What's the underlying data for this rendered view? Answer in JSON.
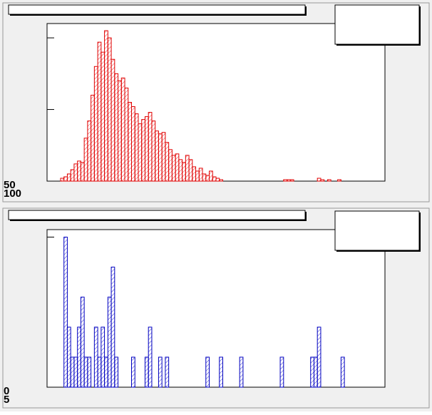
{
  "chart_data": [
    {
      "type": "histogram",
      "color": "#e00000",
      "bins": [
        0,
        1,
        2,
        3,
        4,
        5,
        6,
        7,
        8,
        9,
        10,
        11,
        12,
        13,
        14,
        15,
        16,
        17,
        18,
        19,
        20,
        21,
        22,
        23,
        24,
        25,
        26,
        27,
        28,
        29,
        30,
        31,
        32,
        33,
        34,
        35,
        36,
        37,
        38,
        39,
        40,
        41,
        42,
        43,
        44,
        45,
        46,
        47,
        48,
        49,
        50,
        51,
        52,
        53,
        54,
        55,
        56,
        57,
        58,
        59,
        60,
        61,
        62,
        63,
        64,
        65,
        66,
        67,
        68,
        69,
        70,
        71,
        72,
        73,
        74,
        75,
        76,
        77,
        78,
        79,
        80,
        81,
        82,
        83,
        84,
        85,
        86,
        87,
        88,
        89,
        90,
        91,
        92,
        93,
        94,
        95,
        96,
        97,
        98,
        99,
        100
      ],
      "values": [
        0,
        0,
        0,
        0,
        2,
        3,
        5,
        8,
        12,
        14,
        13,
        30,
        42,
        60,
        80,
        97,
        90,
        105,
        100,
        85,
        75,
        70,
        72,
        65,
        55,
        52,
        47,
        40,
        43,
        45,
        48,
        42,
        35,
        33,
        34,
        27,
        22,
        18,
        19,
        15,
        13,
        18,
        15,
        10,
        7,
        9,
        5,
        4,
        7,
        3,
        2,
        1,
        0,
        0,
        0,
        0,
        0,
        0,
        0,
        0,
        0,
        0,
        0,
        0,
        0,
        0,
        0,
        0,
        0,
        0,
        1,
        1,
        1,
        0,
        0,
        0,
        0,
        0,
        0,
        0,
        2,
        1,
        0,
        1,
        0,
        0,
        1,
        0,
        0,
        0,
        0,
        0,
        0,
        0,
        0,
        0,
        0,
        0,
        0,
        0
      ],
      "xlim": [
        0,
        100
      ],
      "ylim": [
        0,
        110
      ],
      "yticks": [
        50,
        100
      ]
    },
    {
      "type": "histogram",
      "color": "#0000c0",
      "bins": [
        0,
        1,
        2,
        3,
        4,
        5,
        6,
        7,
        8,
        9,
        10,
        11,
        12,
        13,
        14,
        15,
        16,
        17,
        18,
        19,
        20,
        21,
        22,
        23,
        24,
        25,
        26,
        27,
        28,
        29,
        30,
        31,
        32,
        33,
        34,
        35,
        36,
        37,
        38,
        39,
        40,
        41,
        42,
        43,
        44,
        45,
        46,
        47,
        48,
        49,
        50,
        51,
        52,
        53,
        54,
        55,
        56,
        57,
        58,
        59,
        60,
        61,
        62,
        63,
        64,
        65,
        66,
        67,
        68,
        69,
        70,
        71,
        72,
        73,
        74,
        75,
        76,
        77,
        78,
        79,
        80,
        81,
        82,
        83,
        84,
        85,
        86,
        87,
        88,
        89,
        90,
        91,
        92,
        93,
        94,
        95,
        96,
        97,
        98,
        99,
        100
      ],
      "values": [
        0,
        0,
        0,
        0,
        0,
        5,
        2,
        1,
        1,
        2,
        3,
        1,
        1,
        0,
        2,
        1,
        2,
        1,
        3,
        4,
        1,
        0,
        0,
        0,
        0,
        1,
        0,
        0,
        0,
        1,
        2,
        0,
        0,
        1,
        0,
        1,
        0,
        0,
        0,
        0,
        0,
        0,
        0,
        0,
        0,
        0,
        0,
        1,
        0,
        0,
        0,
        1,
        0,
        0,
        0,
        0,
        0,
        1,
        0,
        0,
        0,
        0,
        0,
        0,
        0,
        0,
        0,
        0,
        0,
        1,
        0,
        0,
        0,
        0,
        0,
        0,
        0,
        0,
        1,
        1,
        2,
        0,
        0,
        0,
        0,
        0,
        0,
        1,
        0,
        0,
        0,
        0,
        0,
        0,
        0,
        0,
        0,
        0,
        0,
        0
      ],
      "xlim": [
        0,
        100
      ],
      "ylim": [
        0,
        5.25
      ],
      "yticks": [
        0,
        5
      ]
    }
  ]
}
